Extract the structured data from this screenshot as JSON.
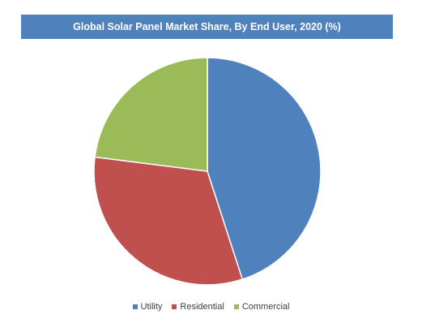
{
  "chart_data": {
    "type": "pie",
    "title": "Global Solar Panel Market Share, By End User, 2020 (%)",
    "categories": [
      "Utility",
      "Residential",
      "Commercial"
    ],
    "values": [
      45,
      32,
      23
    ],
    "colors": [
      "#4f81bd",
      "#c0504d",
      "#9bbb59"
    ],
    "legend_position": "bottom"
  }
}
